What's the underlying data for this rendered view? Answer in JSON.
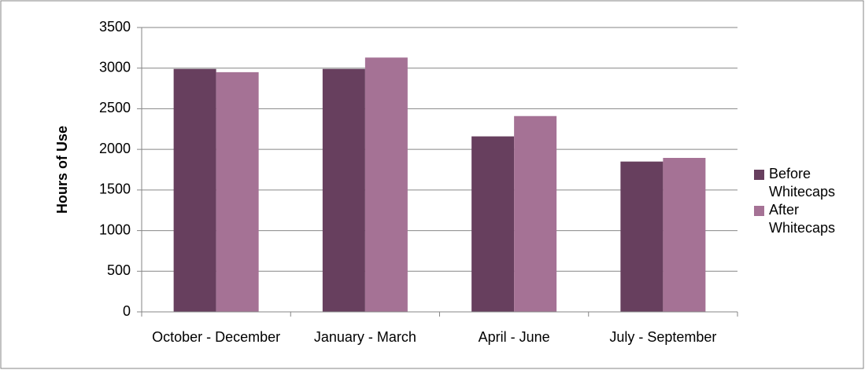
{
  "chart_data": {
    "type": "bar",
    "ylabel": "Hours of Use",
    "categories": [
      "October - December",
      "January - March",
      "April - June",
      "July - September"
    ],
    "series": [
      {
        "name": "Before Whitecaps",
        "color": "#673f5e",
        "values": [
          2990,
          2990,
          2160,
          1850
        ]
      },
      {
        "name": "After Whitecaps",
        "color": "#a57295",
        "values": [
          2950,
          3130,
          2410,
          1895
        ]
      }
    ],
    "ylim": [
      0,
      3500
    ],
    "yticks": [
      0,
      500,
      1000,
      1500,
      2000,
      2500,
      3000,
      3500
    ],
    "grid": true,
    "legend": "right"
  }
}
